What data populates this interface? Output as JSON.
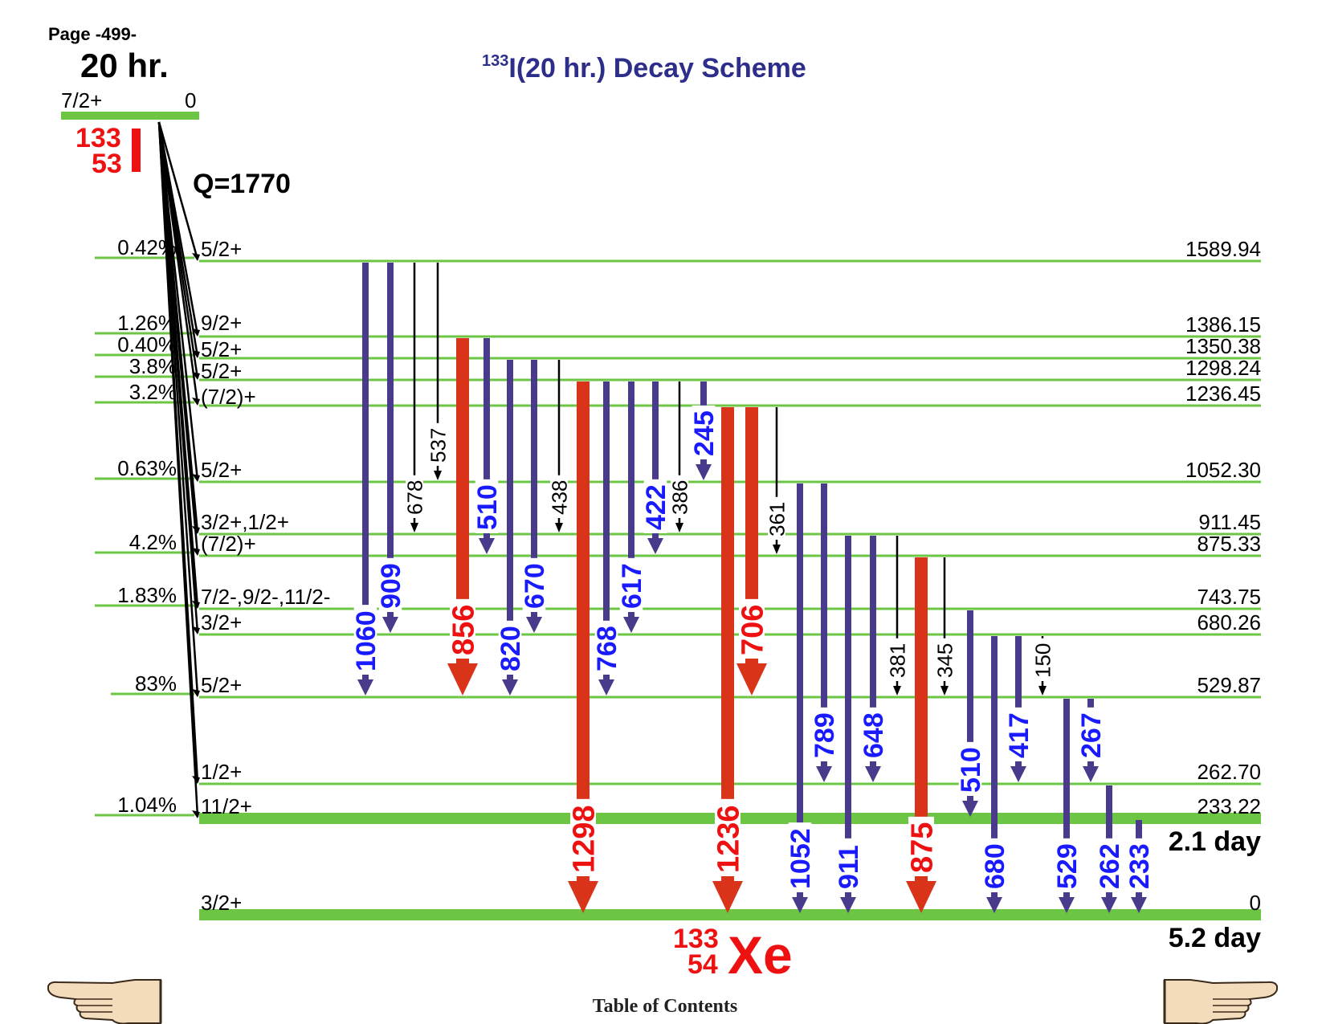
{
  "page_label": "Page -499-",
  "title": {
    "mass": "133",
    "rest": "I(20 hr.) Decay Scheme"
  },
  "parent": {
    "halflife": "20 hr.",
    "spin": "7/2+",
    "energy": "0",
    "mass": "133",
    "z": "53",
    "symbol": "I",
    "q_value": "Q=1770"
  },
  "daughter": {
    "mass": "133",
    "z": "54",
    "symbol": "Xe"
  },
  "colors": {
    "level": "#6cc644",
    "strong": "#d9341a",
    "medium": "#4a3a8c",
    "weak": "#000000",
    "strong_label": "#ee1111",
    "medium_label": "#1a1aff",
    "weak_label": "#000000",
    "title": "#2d2d8a"
  },
  "levels": [
    {
      "energy": "1589.94",
      "spin": "5/2+",
      "branch": "0.42%"
    },
    {
      "energy": "1386.15",
      "spin": "9/2+",
      "branch": "1.26%"
    },
    {
      "energy": "1350.38",
      "spin": "5/2+",
      "branch": "0.40%"
    },
    {
      "energy": "1298.24",
      "spin": "5/2+",
      "branch": "3.8%"
    },
    {
      "energy": "1236.45",
      "spin": "(7/2)+",
      "branch": "3.2%"
    },
    {
      "energy": "1052.30",
      "spin": "5/2+",
      "branch": "0.63%"
    },
    {
      "energy": "911.45",
      "spin": "3/2+,1/2+",
      "branch": ""
    },
    {
      "energy": "875.33",
      "spin": "(7/2)+",
      "branch": "4.2%"
    },
    {
      "energy": "743.75",
      "spin": "7/2-,9/2-,11/2-",
      "branch": "1.83%"
    },
    {
      "energy": "680.26",
      "spin": "3/2+",
      "branch": ""
    },
    {
      "energy": "529.87",
      "spin": "5/2+",
      "branch": "83%"
    },
    {
      "energy": "262.70",
      "spin": "1/2+",
      "branch": ""
    },
    {
      "energy": "233.22",
      "spin": "11/2+",
      "branch": "1.04%",
      "halflife": "2.1 day"
    },
    {
      "energy": "0",
      "spin": "3/2+",
      "branch": "",
      "halflife": "5.2 day"
    }
  ],
  "gammas": [
    {
      "energy": "1060",
      "from": "1589.94",
      "to": "529.87",
      "intensity": "medium"
    },
    {
      "energy": "909",
      "from": "1589.94",
      "to": "680.26",
      "intensity": "medium"
    },
    {
      "energy": "678",
      "from": "1589.94",
      "to": "911.45",
      "intensity": "weak"
    },
    {
      "energy": "537",
      "from": "1589.94",
      "to": "1052.30",
      "intensity": "weak"
    },
    {
      "energy": "856",
      "from": "1386.15",
      "to": "529.87",
      "intensity": "strong"
    },
    {
      "energy": "510",
      "from": "1386.15",
      "to": "875.33",
      "intensity": "medium"
    },
    {
      "energy": "820",
      "from": "1350.38",
      "to": "529.87",
      "intensity": "medium"
    },
    {
      "energy": "670",
      "from": "1350.38",
      "to": "680.26",
      "intensity": "medium"
    },
    {
      "energy": "438",
      "from": "1350.38",
      "to": "911.45",
      "intensity": "weak"
    },
    {
      "energy": "1298",
      "from": "1298.24",
      "to": "0",
      "intensity": "strong"
    },
    {
      "energy": "768",
      "from": "1298.24",
      "to": "529.87",
      "intensity": "medium"
    },
    {
      "energy": "617",
      "from": "1298.24",
      "to": "680.26",
      "intensity": "medium"
    },
    {
      "energy": "422",
      "from": "1298.24",
      "to": "875.33",
      "intensity": "medium"
    },
    {
      "energy": "386",
      "from": "1298.24",
      "to": "911.45",
      "intensity": "weak"
    },
    {
      "energy": "245",
      "from": "1298.24",
      "to": "1052.30",
      "intensity": "medium"
    },
    {
      "energy": "1236",
      "from": "1236.45",
      "to": "0",
      "intensity": "strong"
    },
    {
      "energy": "706",
      "from": "1236.45",
      "to": "529.87",
      "intensity": "strong"
    },
    {
      "energy": "361",
      "from": "1236.45",
      "to": "875.33",
      "intensity": "weak"
    },
    {
      "energy": "1052",
      "from": "1052.30",
      "to": "0",
      "intensity": "medium"
    },
    {
      "energy": "789",
      "from": "1052.30",
      "to": "262.70",
      "intensity": "medium"
    },
    {
      "energy": "911",
      "from": "911.45",
      "to": "0",
      "intensity": "medium"
    },
    {
      "energy": "648",
      "from": "911.45",
      "to": "262.70",
      "intensity": "medium"
    },
    {
      "energy": "381",
      "from": "911.45",
      "to": "529.87",
      "intensity": "weak"
    },
    {
      "energy": "875",
      "from": "875.33",
      "to": "0",
      "intensity": "strong"
    },
    {
      "energy": "345",
      "from": "875.33",
      "to": "529.87",
      "intensity": "weak"
    },
    {
      "energy": "510",
      "from": "743.75",
      "to": "233.22",
      "intensity": "medium"
    },
    {
      "energy": "680",
      "from": "680.26",
      "to": "0",
      "intensity": "medium"
    },
    {
      "energy": "417",
      "from": "680.26",
      "to": "262.70",
      "intensity": "medium"
    },
    {
      "energy": "150",
      "from": "680.26",
      "to": "529.87",
      "intensity": "weak"
    },
    {
      "energy": "529",
      "from": "529.87",
      "to": "0",
      "intensity": "medium"
    },
    {
      "energy": "267",
      "from": "529.87",
      "to": "262.70",
      "intensity": "medium"
    },
    {
      "energy": "262",
      "from": "262.70",
      "to": "0",
      "intensity": "medium"
    },
    {
      "energy": "233",
      "from": "233.22",
      "to": "0",
      "intensity": "medium"
    }
  ],
  "footer": {
    "toc_label": "Table of Contents",
    "prev_icon": "pointing-hand-left-icon",
    "next_icon": "pointing-hand-right-icon"
  }
}
